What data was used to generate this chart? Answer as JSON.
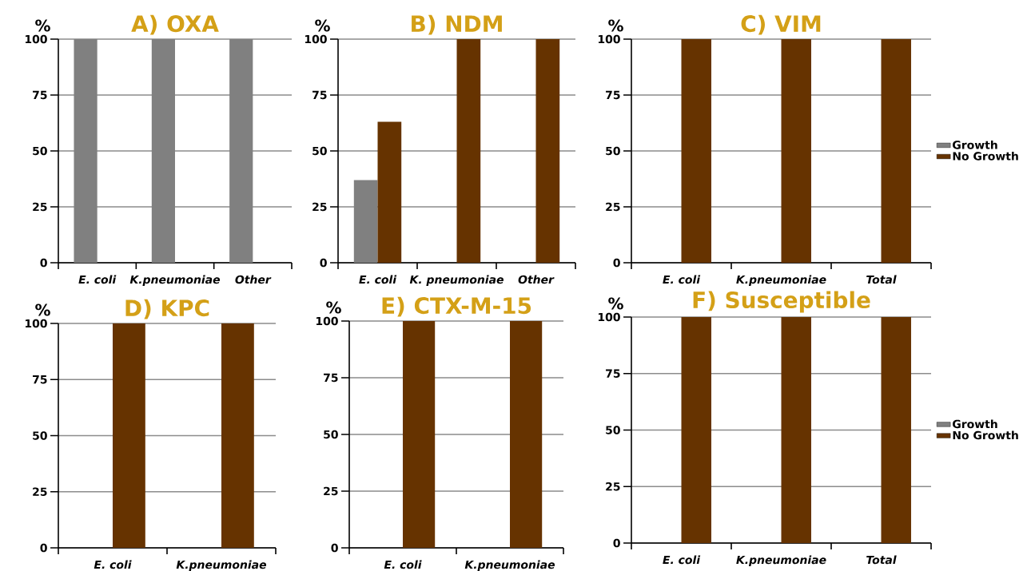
{
  "chart_data": [
    {
      "type": "bar",
      "title": "A) OXA",
      "ylabel": "%",
      "categories": [
        "E. coli",
        "K.pneumoniae",
        "Other"
      ],
      "series": [
        {
          "color": "#808080",
          "values": [
            100,
            100,
            100
          ]
        },
        {
          "color": "#663300",
          "values": [
            0,
            0,
            0
          ]
        }
      ],
      "ylim": [
        0,
        100
      ],
      "yticks": [
        0,
        25,
        50,
        75,
        100
      ],
      "grid": "y",
      "legend": false
    },
    {
      "type": "bar",
      "title": "B) NDM",
      "ylabel": "%",
      "categories": [
        "E. coli",
        "K. pneumoniae",
        "Other"
      ],
      "series": [
        {
          "color": "#808080",
          "values": [
            37,
            0,
            0
          ]
        },
        {
          "color": "#663300",
          "values": [
            63,
            100,
            100
          ]
        }
      ],
      "ylim": [
        0,
        100
      ],
      "yticks": [
        0,
        25,
        50,
        75,
        100
      ],
      "grid": "y",
      "legend": false
    },
    {
      "type": "bar",
      "title": "C) VIM",
      "ylabel": "%",
      "categories": [
        "E. coli",
        "K.pneumoniae",
        "Total"
      ],
      "series": [
        {
          "name": "Growth",
          "color": "#808080",
          "values": [
            0,
            0,
            0
          ]
        },
        {
          "name": "No Growth",
          "color": "#663300",
          "values": [
            100,
            100,
            100
          ]
        }
      ],
      "ylim": [
        0,
        100
      ],
      "yticks": [
        0,
        25,
        50,
        75,
        100
      ],
      "grid": "y",
      "legend": "right"
    },
    {
      "type": "bar",
      "title": "D) KPC",
      "ylabel": "%",
      "categories": [
        "E. coli",
        "K.pneumoniae"
      ],
      "series": [
        {
          "color": "#808080",
          "values": [
            0,
            0
          ]
        },
        {
          "color": "#663300",
          "values": [
            100,
            100
          ]
        }
      ],
      "ylim": [
        0,
        100
      ],
      "yticks": [
        0,
        25,
        50,
        75,
        100
      ],
      "grid": "y",
      "legend": false
    },
    {
      "type": "bar",
      "title": "E) CTX-M-15",
      "ylabel": "%",
      "categories": [
        "E. coli",
        "K.pneumoniae"
      ],
      "series": [
        {
          "color": "#808080",
          "values": [
            0,
            0
          ]
        },
        {
          "color": "#663300",
          "values": [
            100,
            100
          ]
        }
      ],
      "ylim": [
        0,
        100
      ],
      "yticks": [
        0,
        25,
        50,
        75,
        100
      ],
      "grid": "y",
      "legend": false
    },
    {
      "type": "bar",
      "title": "F) Susceptible",
      "ylabel": "%",
      "categories": [
        "E. coli",
        "K.pneumoniae",
        "Total"
      ],
      "series": [
        {
          "name": "Growth",
          "color": "#808080",
          "values": [
            0,
            0,
            0
          ]
        },
        {
          "name": "No Growth",
          "color": "#663300",
          "values": [
            100,
            100,
            100
          ]
        }
      ],
      "ylim": [
        0,
        100
      ],
      "yticks": [
        0,
        25,
        50,
        75,
        100
      ],
      "grid": "y",
      "legend": "right"
    }
  ]
}
